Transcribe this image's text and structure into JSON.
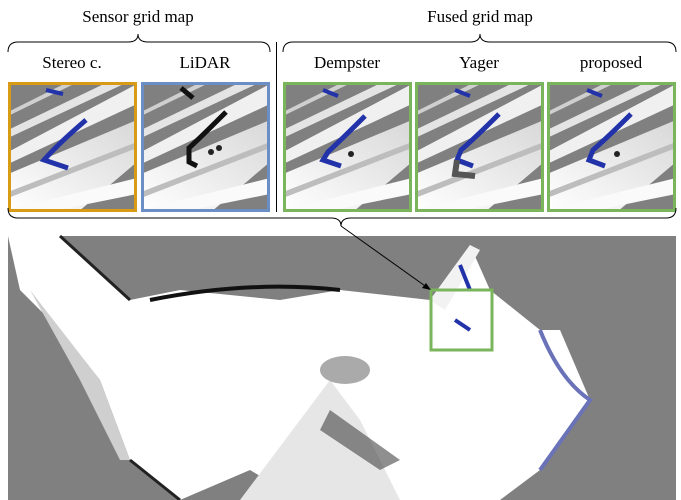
{
  "groups": [
    {
      "label": "Sensor grid map"
    },
    {
      "label": "Fused grid map"
    }
  ],
  "panels": [
    {
      "label": "Stereo c."
    },
    {
      "label": "LiDAR"
    },
    {
      "label": "Dempster"
    },
    {
      "label": "Yager"
    },
    {
      "label": "proposed"
    }
  ]
}
